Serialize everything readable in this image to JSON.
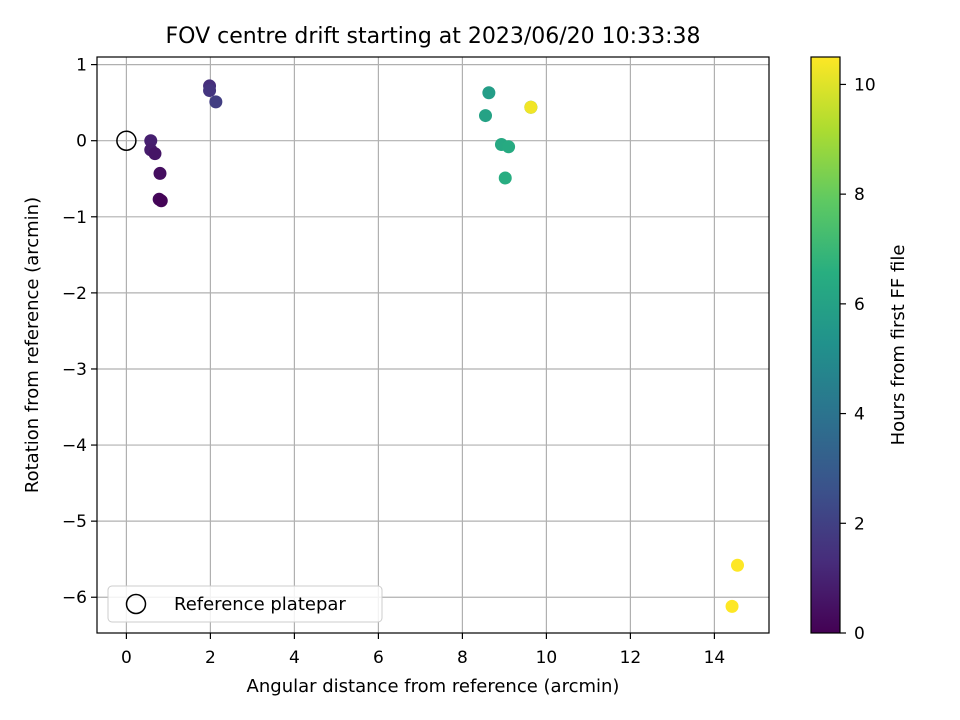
{
  "chart_data": {
    "type": "scatter",
    "title": "FOV centre drift starting at 2023/06/20 10:33:38",
    "xlabel": "Angular distance from reference (arcmin)",
    "ylabel": "Rotation from reference (arcmin)",
    "xlim": [
      -0.7,
      15.3
    ],
    "ylim": [
      -6.47,
      1.1
    ],
    "x_ticks": [
      0,
      2,
      4,
      6,
      8,
      10,
      12,
      14
    ],
    "y_ticks": [
      1,
      0,
      -1,
      -2,
      -3,
      -4,
      -5,
      -6
    ],
    "grid": true,
    "legend": {
      "position": "lower-left",
      "entries": [
        "Reference platepar"
      ]
    },
    "reference_point": {
      "x": 0,
      "y": 0,
      "label": "Reference platepar"
    },
    "colorbar": {
      "label": "Hours from first FF file",
      "colormap": "viridis",
      "range": [
        0,
        10.5
      ],
      "ticks": [
        0,
        2,
        4,
        6,
        8,
        10
      ]
    },
    "series": [
      {
        "points": [
          {
            "x": 0.58,
            "y": 0.0,
            "hours": 0.9
          },
          {
            "x": 0.58,
            "y": -0.12,
            "hours": 0.8
          },
          {
            "x": 0.68,
            "y": -0.17,
            "hours": 0.6
          },
          {
            "x": 0.8,
            "y": -0.43,
            "hours": 0.4
          },
          {
            "x": 0.78,
            "y": -0.77,
            "hours": 0.2
          },
          {
            "x": 0.83,
            "y": -0.79,
            "hours": 0.1
          },
          {
            "x": 1.98,
            "y": 0.72,
            "hours": 1.4
          },
          {
            "x": 1.98,
            "y": 0.66,
            "hours": 1.6
          },
          {
            "x": 2.13,
            "y": 0.51,
            "hours": 1.9
          },
          {
            "x": 8.63,
            "y": 0.63,
            "hours": 5.8
          },
          {
            "x": 8.55,
            "y": 0.33,
            "hours": 6.0
          },
          {
            "x": 9.63,
            "y": 0.44,
            "hours": 6.2
          },
          {
            "x": 8.93,
            "y": -0.05,
            "hours": 6.3
          },
          {
            "x": 9.1,
            "y": -0.08,
            "hours": 6.4
          },
          {
            "x": 9.02,
            "y": -0.49,
            "hours": 6.5
          },
          {
            "x": 9.63,
            "y": 0.44,
            "hours": 10.3
          },
          {
            "x": 14.55,
            "y": -5.58,
            "hours": 10.5
          },
          {
            "x": 14.42,
            "y": -6.12,
            "hours": 10.5
          }
        ]
      }
    ]
  }
}
